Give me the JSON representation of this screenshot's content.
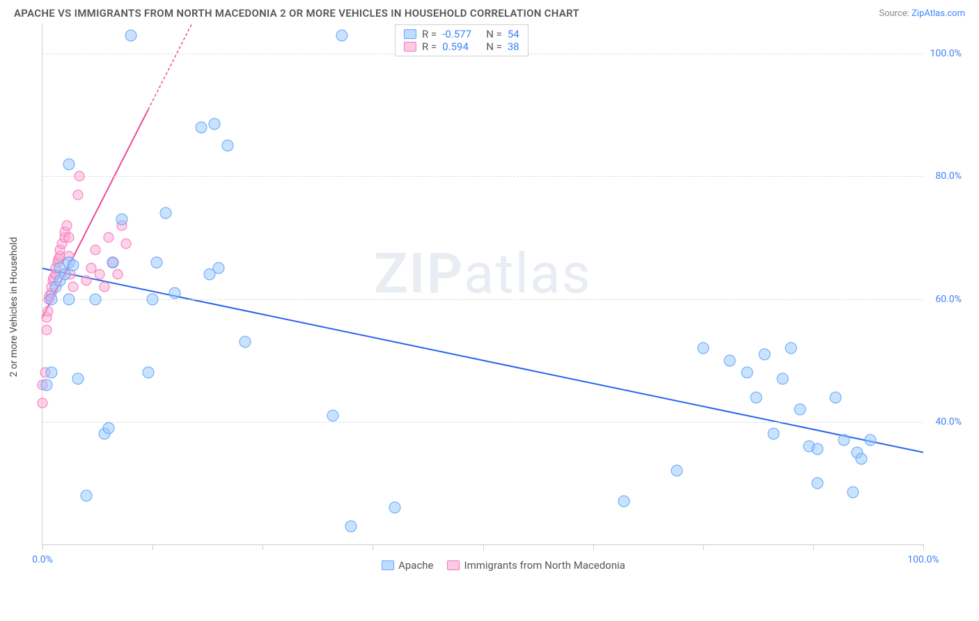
{
  "header": {
    "title": "APACHE VS IMMIGRANTS FROM NORTH MACEDONIA 2 OR MORE VEHICLES IN HOUSEHOLD CORRELATION CHART",
    "source_prefix": "Source: ",
    "source_link": "ZipAtlas.com"
  },
  "chart": {
    "yaxis_label": "2 or more Vehicles in Household",
    "xlim": [
      0,
      100
    ],
    "ylim": [
      20,
      105
    ],
    "yticks": [
      40,
      60,
      80,
      100
    ],
    "ytick_labels": [
      "40.0%",
      "60.0%",
      "80.0%",
      "100.0%"
    ],
    "xticks": [
      0,
      12.5,
      25,
      37.5,
      50,
      62.5,
      75,
      87.5,
      100
    ],
    "xtick_labels": {
      "start": "0.0%",
      "end": "100.0%"
    },
    "watermark": "ZIPatlas",
    "background_color": "#ffffff",
    "grid_color": "#dddddd"
  },
  "series": {
    "blue": {
      "name": "Apache",
      "color_fill": "rgba(147,197,253,0.5)",
      "color_stroke": "#60a5fa",
      "r": -0.577,
      "n": 54,
      "trend": {
        "x1": 0,
        "y1": 65,
        "x2": 100,
        "y2": 35,
        "color": "#2563eb",
        "width": 2
      },
      "points": [
        [
          0.5,
          46
        ],
        [
          1,
          48
        ],
        [
          1,
          60
        ],
        [
          1.5,
          62
        ],
        [
          2,
          63
        ],
        [
          2,
          65
        ],
        [
          2.5,
          64
        ],
        [
          3,
          66
        ],
        [
          3.5,
          65.5
        ],
        [
          3,
          82
        ],
        [
          3,
          60
        ],
        [
          4,
          47
        ],
        [
          5,
          28
        ],
        [
          6,
          60
        ],
        [
          7,
          38
        ],
        [
          7.5,
          39
        ],
        [
          8,
          66
        ],
        [
          9,
          73
        ],
        [
          10,
          103
        ],
        [
          12,
          48
        ],
        [
          12.5,
          60
        ],
        [
          13,
          66
        ],
        [
          14,
          74
        ],
        [
          15,
          61
        ],
        [
          18,
          88
        ],
        [
          19,
          64
        ],
        [
          19.5,
          88.5
        ],
        [
          20,
          65
        ],
        [
          21,
          85
        ],
        [
          23,
          53
        ],
        [
          34,
          103
        ],
        [
          33,
          41
        ],
        [
          35,
          23
        ],
        [
          40,
          26
        ],
        [
          66,
          27
        ],
        [
          72,
          32
        ],
        [
          75,
          52
        ],
        [
          78,
          50
        ],
        [
          80,
          48
        ],
        [
          81,
          44
        ],
        [
          82,
          51
        ],
        [
          83,
          38
        ],
        [
          84,
          47
        ],
        [
          85,
          52
        ],
        [
          86,
          42
        ],
        [
          87,
          36
        ],
        [
          88,
          35.5
        ],
        [
          88,
          30
        ],
        [
          90,
          44
        ],
        [
          91,
          37
        ],
        [
          92,
          28.5
        ],
        [
          92.5,
          35
        ],
        [
          93,
          34
        ],
        [
          94,
          37
        ]
      ]
    },
    "pink": {
      "name": "Immigrants from North Macedonia",
      "color_fill": "rgba(249,168,212,0.5)",
      "color_stroke": "#f472b6",
      "r": 0.594,
      "n": 38,
      "trend": {
        "x1": 0,
        "y1": 57,
        "x2": 17,
        "y2": 105,
        "color": "#ec4899",
        "width": 2,
        "dash_after_x": 12
      },
      "points": [
        [
          0,
          43
        ],
        [
          0,
          46
        ],
        [
          0.3,
          48
        ],
        [
          0.5,
          55
        ],
        [
          0.5,
          57
        ],
        [
          0.6,
          58
        ],
        [
          0.7,
          60
        ],
        [
          0.8,
          60.5
        ],
        [
          1,
          61
        ],
        [
          1,
          62
        ],
        [
          1.2,
          63
        ],
        [
          1.3,
          63.5
        ],
        [
          1.5,
          64
        ],
        [
          1.5,
          65
        ],
        [
          1.7,
          66
        ],
        [
          1.8,
          66.5
        ],
        [
          2,
          67
        ],
        [
          2,
          68
        ],
        [
          2.2,
          69
        ],
        [
          2.5,
          70
        ],
        [
          2.5,
          71
        ],
        [
          2.8,
          72
        ],
        [
          3,
          70
        ],
        [
          3,
          67
        ],
        [
          3.2,
          64
        ],
        [
          3.5,
          62
        ],
        [
          4,
          77
        ],
        [
          4.2,
          80
        ],
        [
          5,
          63
        ],
        [
          5.5,
          65
        ],
        [
          6,
          68
        ],
        [
          6.5,
          64
        ],
        [
          7,
          62
        ],
        [
          7.5,
          70
        ],
        [
          8,
          66
        ],
        [
          8.5,
          64
        ],
        [
          9,
          72
        ],
        [
          9.5,
          69
        ]
      ]
    }
  },
  "legend_top": {
    "r_label": "R =",
    "n_label": "N =",
    "rows": [
      {
        "swatch": "blue",
        "r": "-0.577",
        "n": "54"
      },
      {
        "swatch": "pink",
        "r": "0.594",
        "n": "38"
      }
    ]
  },
  "legend_bottom": {
    "items": [
      {
        "swatch": "blue",
        "label": "Apache"
      },
      {
        "swatch": "pink",
        "label": "Immigrants from North Macedonia"
      }
    ]
  }
}
